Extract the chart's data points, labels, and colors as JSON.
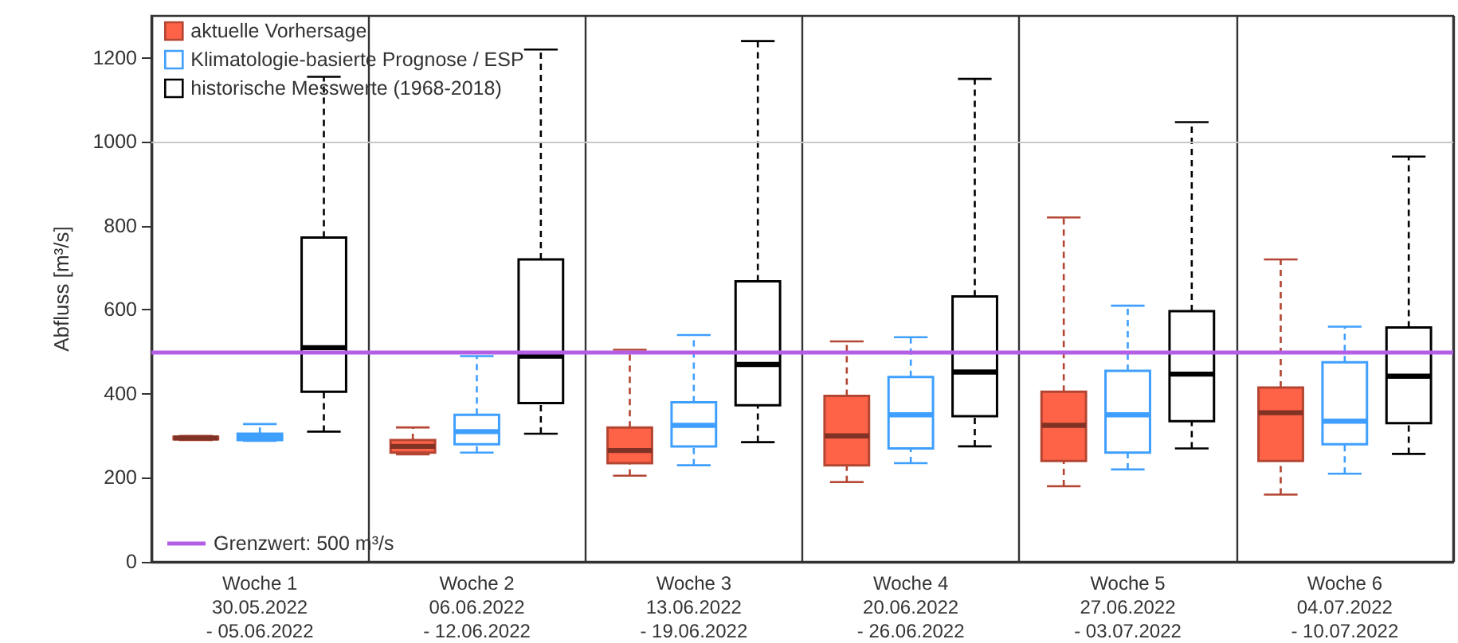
{
  "chart_data": {
    "type": "box",
    "ylabel": "Abfluss [m³/s]",
    "categories": [
      "Woche 1\n30.05.2022\n- 05.06.2022",
      "Woche 2\n06.06.2022\n- 12.06.2022",
      "Woche 3\n13.06.2022\n- 19.06.2022",
      "Woche 4\n20.06.2022\n- 26.06.2022",
      "Woche 5\n27.06.2022\n- 03.07.2022",
      "Woche 6\n04.07.2022\n- 10.07.2022"
    ],
    "series": [
      {
        "name": "aktuelle Vorhersage",
        "color": "#ff6347",
        "boxes": [
          {
            "low": 290,
            "q1": 292,
            "median": 295,
            "q3": 298,
            "high": 300
          },
          {
            "low": 256,
            "q1": 260,
            "median": 275,
            "q3": 290,
            "high": 320
          },
          {
            "low": 205,
            "q1": 235,
            "median": 265,
            "q3": 320,
            "high": 505
          },
          {
            "low": 190,
            "q1": 230,
            "median": 300,
            "q3": 395,
            "high": 525
          },
          {
            "low": 180,
            "q1": 240,
            "median": 325,
            "q3": 405,
            "high": 820
          },
          {
            "low": 160,
            "q1": 240,
            "median": 355,
            "q3": 415,
            "high": 720
          }
        ]
      },
      {
        "name": "Klimatologie-basierte Prognose / ESP",
        "color": "#3f9fff",
        "boxes": [
          {
            "low": 288,
            "q1": 290,
            "median": 297,
            "q3": 305,
            "high": 328
          },
          {
            "low": 260,
            "q1": 280,
            "median": 310,
            "q3": 350,
            "high": 490
          },
          {
            "low": 230,
            "q1": 275,
            "median": 325,
            "q3": 380,
            "high": 540
          },
          {
            "low": 235,
            "q1": 270,
            "median": 350,
            "q3": 440,
            "high": 535
          },
          {
            "low": 220,
            "q1": 260,
            "median": 350,
            "q3": 455,
            "high": 610
          },
          {
            "low": 210,
            "q1": 280,
            "median": 335,
            "q3": 475,
            "high": 560
          }
        ]
      },
      {
        "name": "historische Messwerte (1968-2018)",
        "color": "#000000",
        "boxes": [
          {
            "low": 310,
            "q1": 405,
            "median": 510,
            "q3": 772,
            "high": 1155
          },
          {
            "low": 305,
            "q1": 378,
            "median": 490,
            "q3": 720,
            "high": 1220
          },
          {
            "low": 285,
            "q1": 373,
            "median": 470,
            "q3": 668,
            "high": 1240
          },
          {
            "low": 275,
            "q1": 347,
            "median": 452,
            "q3": 632,
            "high": 1150
          },
          {
            "low": 270,
            "q1": 335,
            "median": 447,
            "q3": 597,
            "high": 1047
          },
          {
            "low": 257,
            "q1": 330,
            "median": 442,
            "q3": 558,
            "high": 965
          }
        ]
      }
    ],
    "ylim": [
      0,
      1300
    ],
    "yticks": [
      0,
      200,
      400,
      600,
      800,
      1000,
      1200
    ],
    "grid": "x",
    "legend": "top left",
    "ref_lines": [
      {
        "axis": "y",
        "value": 1000,
        "color": "#c8c8c8"
      },
      {
        "axis": "y",
        "value": 500,
        "label": "Grenzwert: 500 m³/s",
        "color": "#b45ee6"
      }
    ]
  }
}
